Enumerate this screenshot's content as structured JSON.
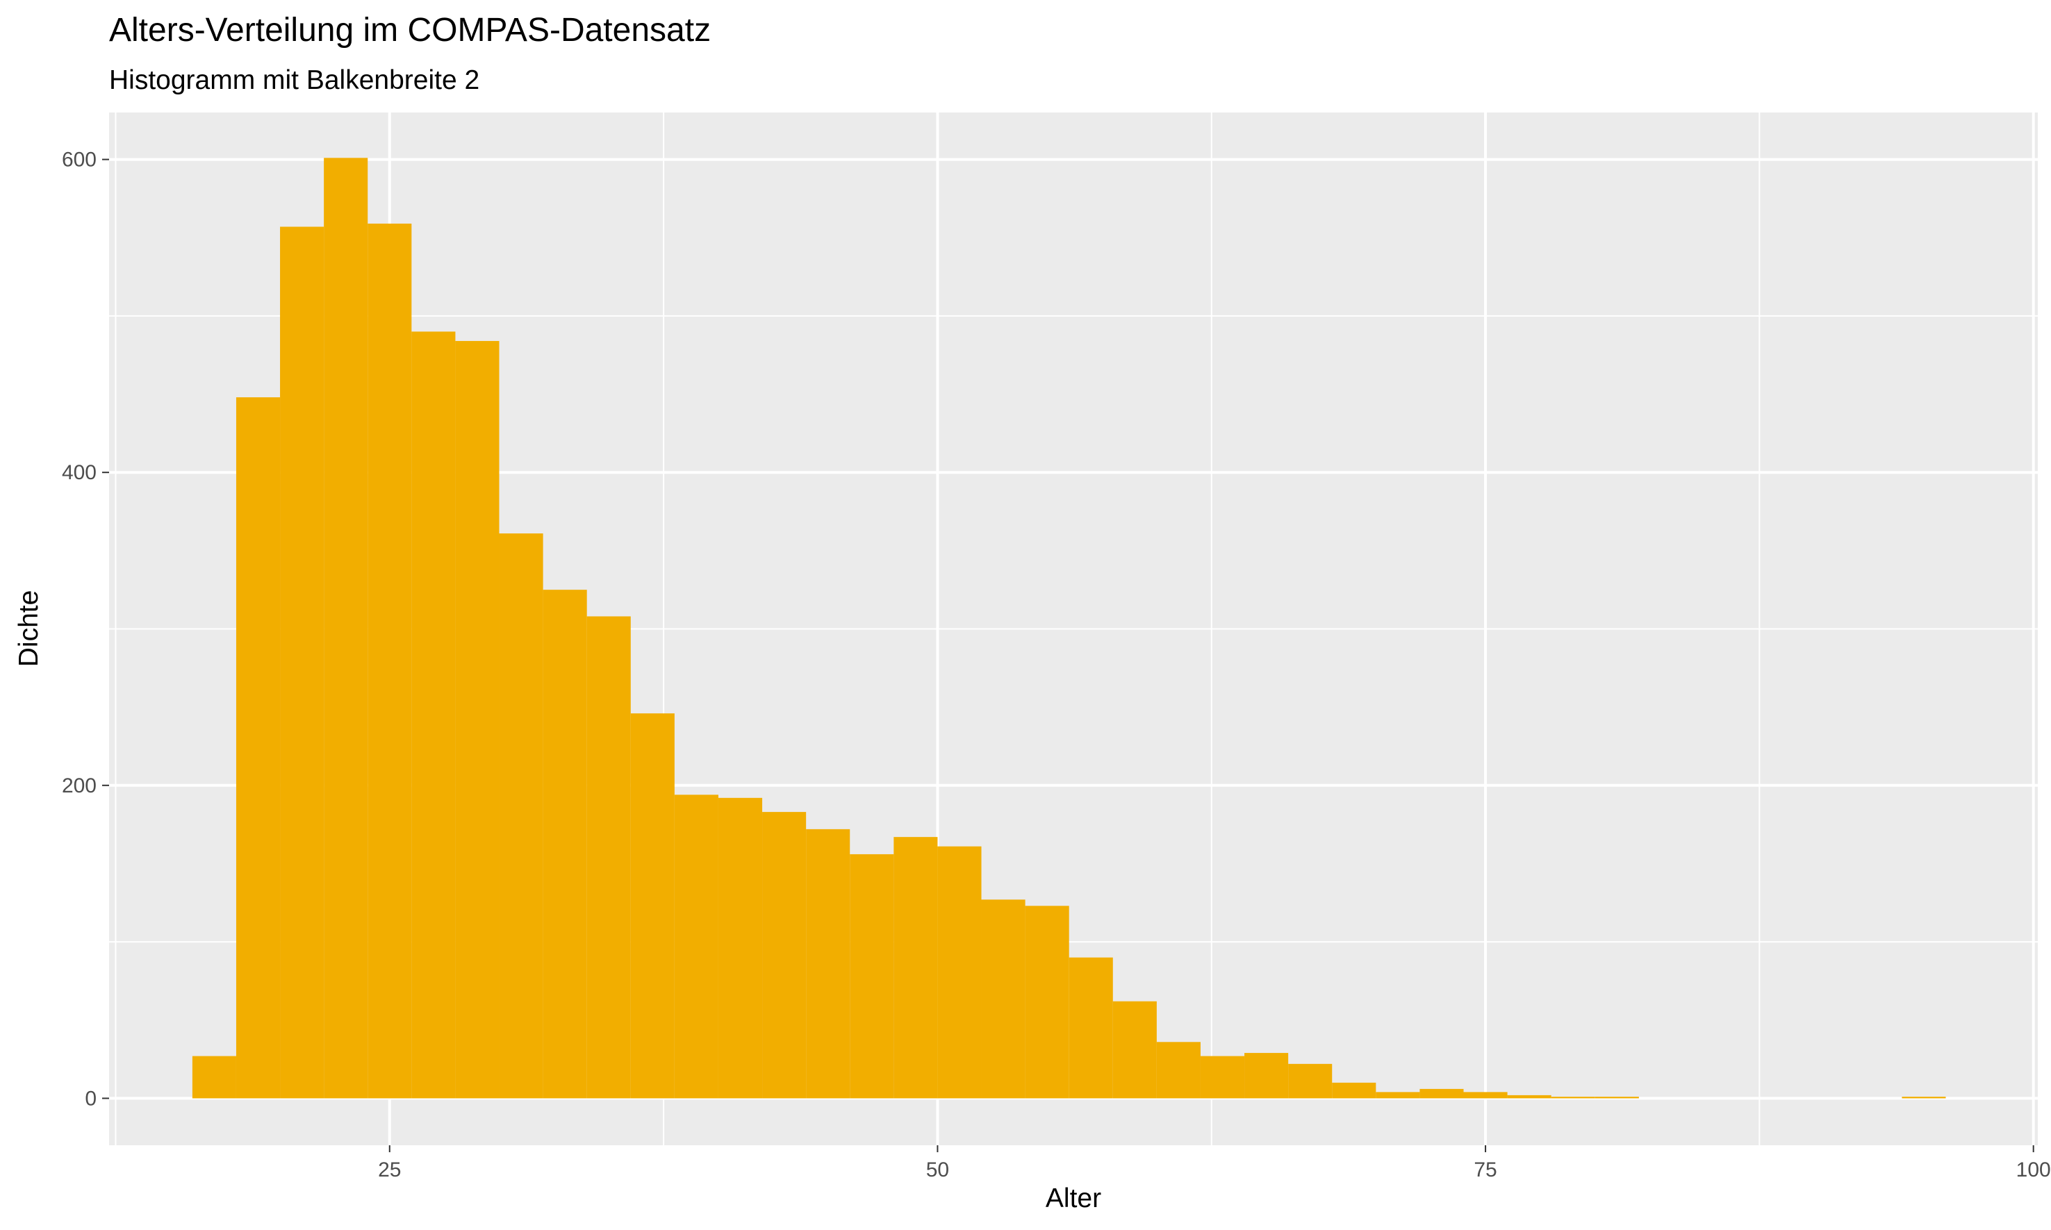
{
  "chart_data": {
    "type": "bar",
    "title": "Alters-Verteilung im COMPAS-Datensatz",
    "subtitle": "Histogramm mit Balkenbreite 2",
    "xlabel": "Alter",
    "ylabel": "Dichte",
    "binwidth": 2,
    "xlim": [
      12.2,
      100.2
    ],
    "ylim": [
      -30,
      630
    ],
    "xticks": [
      "25",
      "50",
      "75",
      "100"
    ],
    "yticks": [
      "0",
      "200",
      "400",
      "600"
    ],
    "grid": true,
    "legend": "none",
    "bar_color": "#F2AE00",
    "panel_background": "#EBEBEB",
    "grid_color": "#FFFFFF",
    "bins": [
      {
        "start": 16,
        "end": 18,
        "value": 27
      },
      {
        "start": 18,
        "end": 20,
        "value": 448
      },
      {
        "start": 20,
        "end": 22,
        "value": 557
      },
      {
        "start": 22,
        "end": 24,
        "value": 601
      },
      {
        "start": 24,
        "end": 26,
        "value": 559
      },
      {
        "start": 26,
        "end": 28,
        "value": 490
      },
      {
        "start": 28,
        "end": 30,
        "value": 484
      },
      {
        "start": 30,
        "end": 32,
        "value": 361
      },
      {
        "start": 32,
        "end": 34,
        "value": 325
      },
      {
        "start": 34,
        "end": 36,
        "value": 308
      },
      {
        "start": 36,
        "end": 38,
        "value": 246
      },
      {
        "start": 38,
        "end": 40,
        "value": 194
      },
      {
        "start": 40,
        "end": 42,
        "value": 192
      },
      {
        "start": 42,
        "end": 44,
        "value": 183
      },
      {
        "start": 44,
        "end": 46,
        "value": 172
      },
      {
        "start": 46,
        "end": 48,
        "value": 156
      },
      {
        "start": 48,
        "end": 50,
        "value": 167
      },
      {
        "start": 50,
        "end": 52,
        "value": 161
      },
      {
        "start": 52,
        "end": 54,
        "value": 127
      },
      {
        "start": 54,
        "end": 56,
        "value": 123
      },
      {
        "start": 56,
        "end": 58,
        "value": 90
      },
      {
        "start": 58,
        "end": 60,
        "value": 62
      },
      {
        "start": 60,
        "end": 62,
        "value": 36
      },
      {
        "start": 62,
        "end": 64,
        "value": 27
      },
      {
        "start": 64,
        "end": 66,
        "value": 29
      },
      {
        "start": 66,
        "end": 68,
        "value": 22
      },
      {
        "start": 68,
        "end": 70,
        "value": 10
      },
      {
        "start": 70,
        "end": 72,
        "value": 4
      },
      {
        "start": 72,
        "end": 74,
        "value": 6
      },
      {
        "start": 74,
        "end": 76,
        "value": 4
      },
      {
        "start": 76,
        "end": 78,
        "value": 2
      },
      {
        "start": 78,
        "end": 80,
        "value": 1
      },
      {
        "start": 80,
        "end": 82,
        "value": 1
      },
      {
        "start": 94,
        "end": 96,
        "value": 1
      }
    ]
  }
}
